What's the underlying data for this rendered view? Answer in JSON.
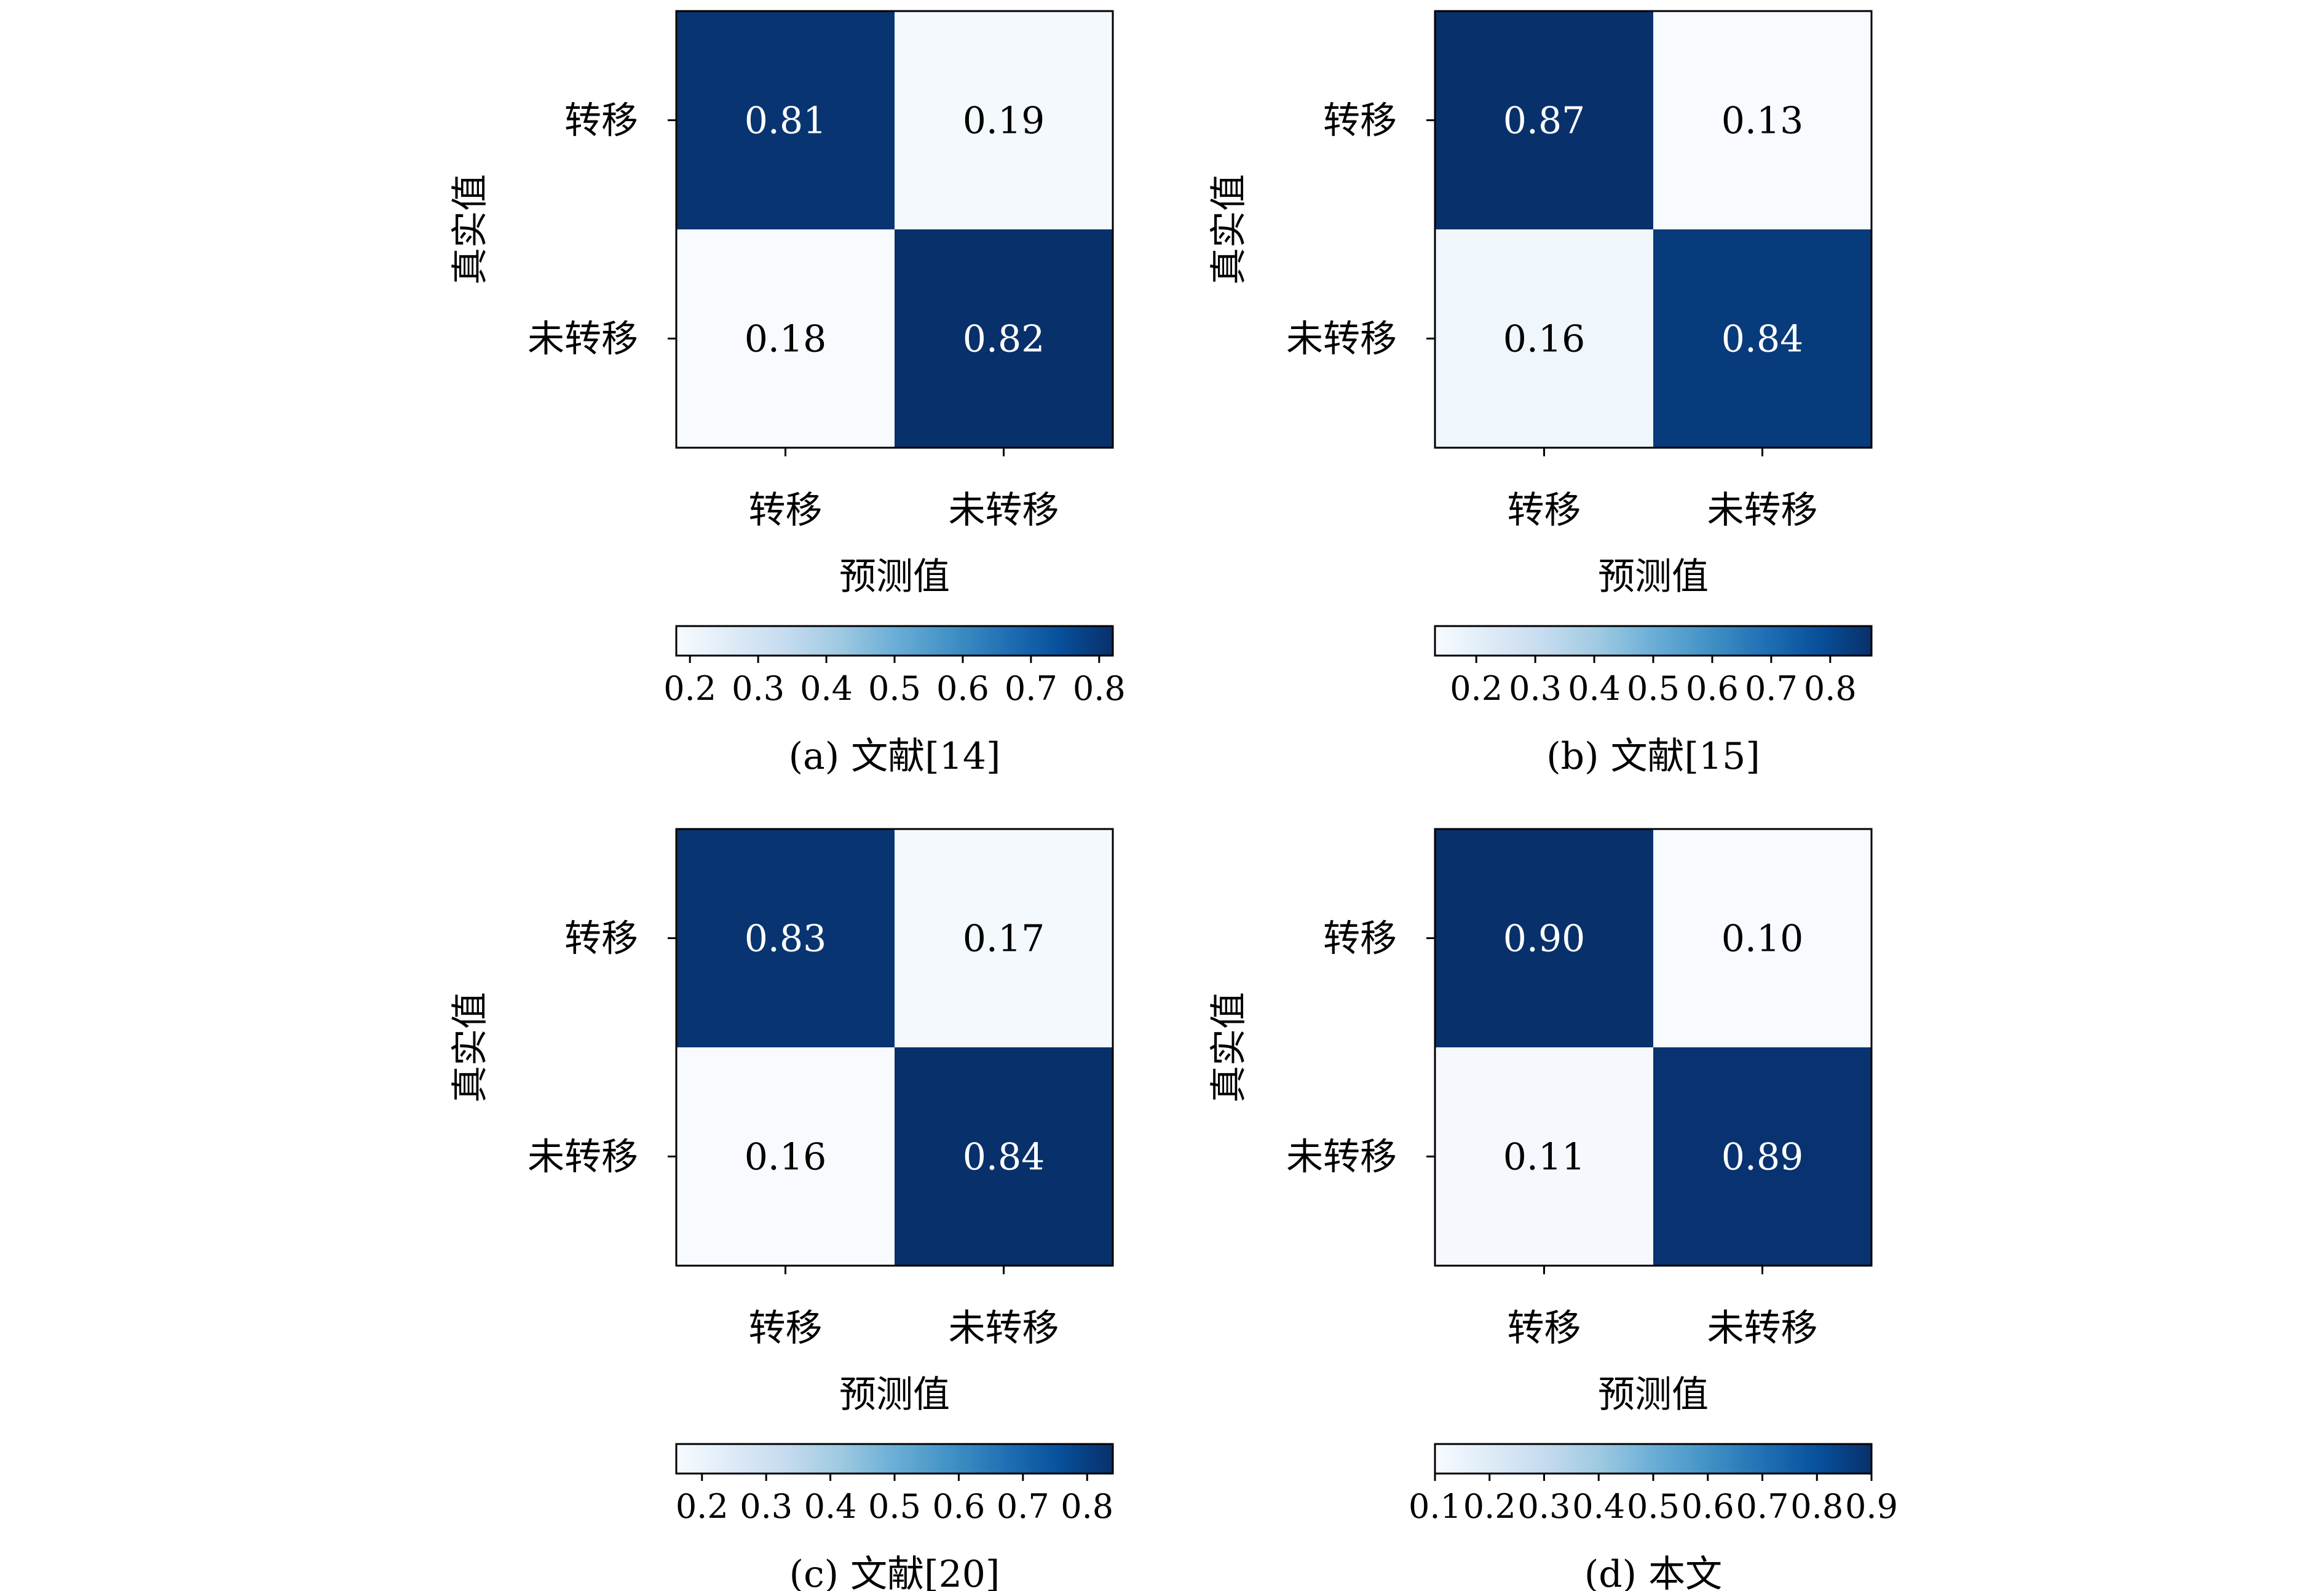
{
  "chart_data": [
    {
      "type": "heatmap",
      "caption": "(a) 文献[14]",
      "xlabel": "预测值",
      "ylabel": "真实值",
      "x_categories": [
        "转移",
        "未转移"
      ],
      "y_categories": [
        "转移",
        "未转移"
      ],
      "values": [
        [
          0.81,
          0.19
        ],
        [
          0.18,
          0.82
        ]
      ],
      "value_labels": [
        [
          "0.81",
          "0.19"
        ],
        [
          "0.18",
          "0.82"
        ]
      ],
      "colormap": "Blues",
      "colorbar": {
        "range": [
          0.18,
          0.82
        ],
        "ticks": [
          0.2,
          0.3,
          0.4,
          0.5,
          0.6,
          0.7,
          0.8
        ],
        "tick_labels": [
          "0.2",
          "0.3",
          "0.4",
          "0.5",
          "0.6",
          "0.7",
          "0.8"
        ],
        "placement": "bottom"
      }
    },
    {
      "type": "heatmap",
      "caption": "(b) 文献[15]",
      "xlabel": "预测值",
      "ylabel": "真实值",
      "x_categories": [
        "转移",
        "未转移"
      ],
      "y_categories": [
        "转移",
        "未转移"
      ],
      "values": [
        [
          0.87,
          0.13
        ],
        [
          0.16,
          0.84
        ]
      ],
      "value_labels": [
        [
          "0.87",
          "0.13"
        ],
        [
          "0.16",
          "0.84"
        ]
      ],
      "colormap": "Blues",
      "colorbar": {
        "range": [
          0.13,
          0.87
        ],
        "ticks": [
          0.2,
          0.3,
          0.4,
          0.5,
          0.6,
          0.7,
          0.8
        ],
        "tick_labels": [
          "0.2",
          "0.3",
          "0.4",
          "0.5",
          "0.6",
          "0.7",
          "0.8"
        ],
        "placement": "bottom"
      }
    },
    {
      "type": "heatmap",
      "caption": "(c) 文献[20]",
      "xlabel": "预测值",
      "ylabel": "真实值",
      "x_categories": [
        "转移",
        "未转移"
      ],
      "y_categories": [
        "转移",
        "未转移"
      ],
      "values": [
        [
          0.83,
          0.17
        ],
        [
          0.16,
          0.84
        ]
      ],
      "value_labels": [
        [
          "0.83",
          "0.17"
        ],
        [
          "0.16",
          "0.84"
        ]
      ],
      "colormap": "Blues",
      "colorbar": {
        "range": [
          0.16,
          0.84
        ],
        "ticks": [
          0.2,
          0.3,
          0.4,
          0.5,
          0.6,
          0.7,
          0.8
        ],
        "tick_labels": [
          "0.2",
          "0.3",
          "0.4",
          "0.5",
          "0.6",
          "0.7",
          "0.8"
        ],
        "placement": "bottom"
      }
    },
    {
      "type": "heatmap",
      "caption": "(d) 本文",
      "xlabel": "预测值",
      "ylabel": "真实值",
      "x_categories": [
        "转移",
        "未转移"
      ],
      "y_categories": [
        "转移",
        "未转移"
      ],
      "values": [
        [
          0.9,
          0.1
        ],
        [
          0.11,
          0.89
        ]
      ],
      "value_labels": [
        [
          "0.90",
          "0.10"
        ],
        [
          "0.11",
          "0.89"
        ]
      ],
      "colormap": "Blues",
      "colorbar": {
        "range": [
          0.1,
          0.9
        ],
        "ticks": [
          0.1,
          0.2,
          0.3,
          0.4,
          0.5,
          0.6,
          0.7,
          0.8,
          0.9
        ],
        "tick_labels": [
          "0.1",
          "0.2",
          "0.3",
          "0.4",
          "0.5",
          "0.6",
          "0.7",
          "0.8",
          "0.9"
        ],
        "placement": "bottom"
      }
    }
  ]
}
